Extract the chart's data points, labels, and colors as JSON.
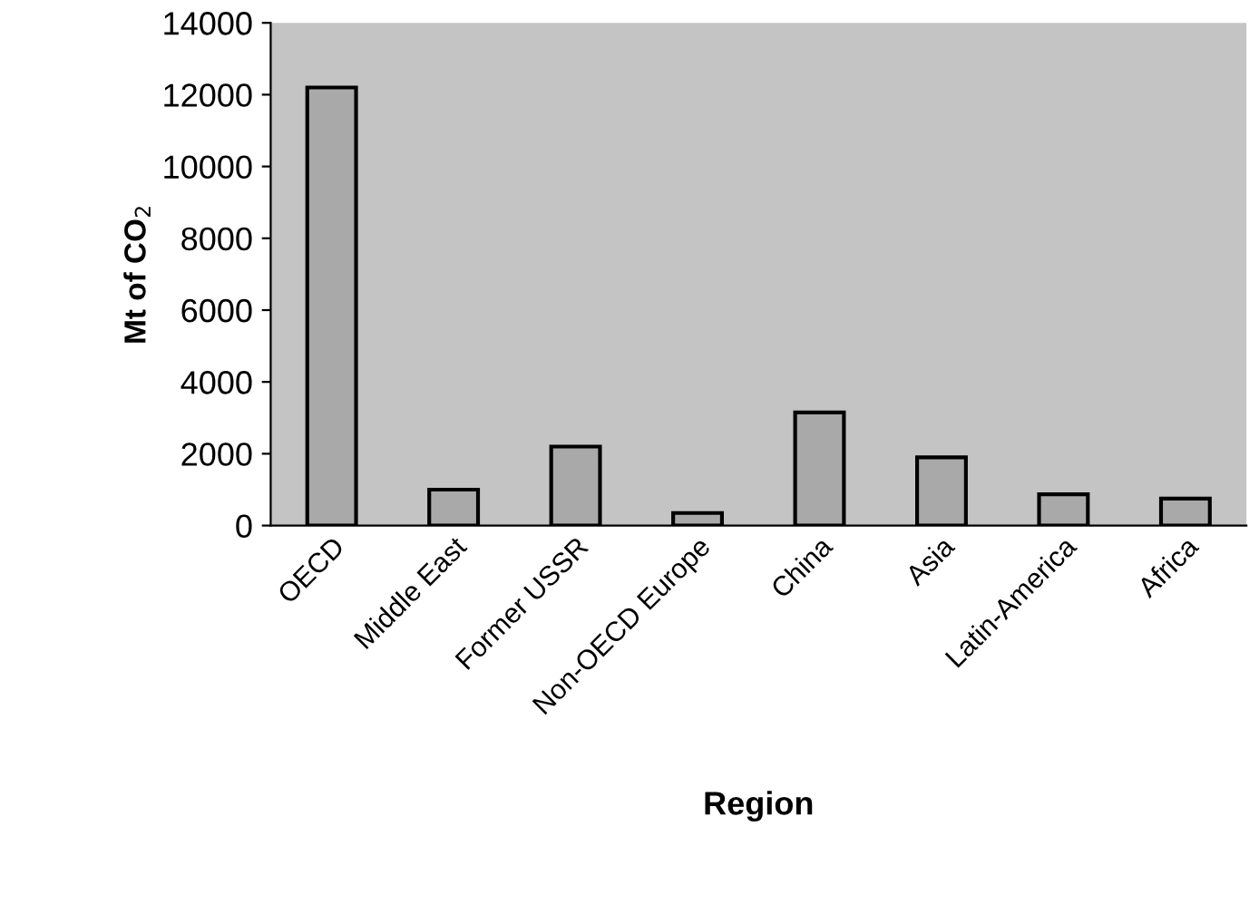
{
  "chart_data": {
    "type": "bar",
    "xlabel": "Region",
    "ylabel": "Mt of CO$_{2}$",
    "categories": [
      "OECD",
      "Middle East",
      "Former USSR",
      "Non-OECD Europe",
      "China",
      "Asia",
      "Latin-America",
      "Africa"
    ],
    "values": [
      12200,
      1000,
      2200,
      350,
      3150,
      1900,
      870,
      750
    ],
    "color": "#a9a9a9",
    "ylim": [
      0,
      14000
    ],
    "yticks": [
      0,
      2000,
      4000,
      6000,
      8000,
      10000,
      12000,
      14000
    ],
    "grid": false
  }
}
